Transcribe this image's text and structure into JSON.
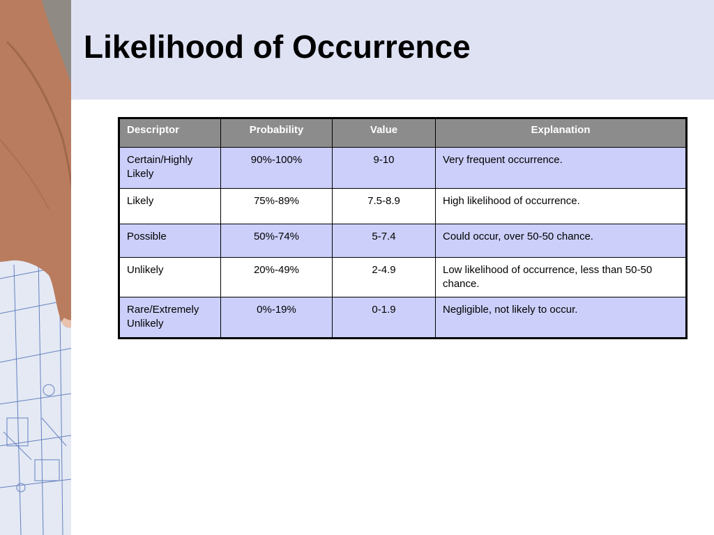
{
  "slide": {
    "title": "Likelihood of Occurrence"
  },
  "table": {
    "headers": [
      "Descriptor",
      "Probability",
      "Value",
      "Explanation"
    ],
    "rows": [
      {
        "descriptor": "Certain/Highly Likely",
        "probability": "90%-100%",
        "value": "9-10",
        "explanation": "Very frequent occurrence."
      },
      {
        "descriptor": "Likely",
        "probability": "75%-89%",
        "value": "7.5-8.9",
        "explanation": "High likelihood of occurrence."
      },
      {
        "descriptor": "Possible",
        "probability": "50%-74%",
        "value": "5-7.4",
        "explanation": "Could occur, over 50-50 chance."
      },
      {
        "descriptor": "Unlikely",
        "probability": "20%-49%",
        "value": "2-4.9",
        "explanation": "Low likelihood of occurrence, less than 50-50 chance."
      },
      {
        "descriptor": "Rare/Extremely Unlikely",
        "probability": "0%-19%",
        "value": "0-1.9",
        "explanation": "Negligible, not likely to occur."
      }
    ]
  },
  "colors": {
    "title_band": "#dfe2f3",
    "header_fill": "#8c8c8c",
    "row_shade": "#cccff9",
    "border": "#000000"
  }
}
